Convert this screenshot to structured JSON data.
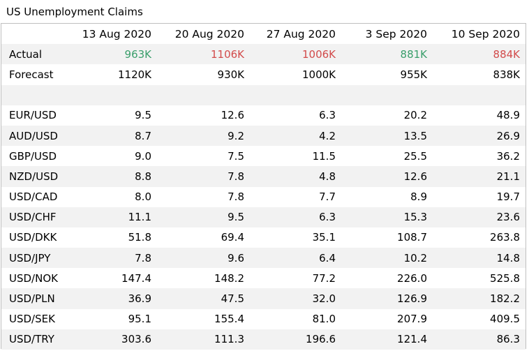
{
  "title": "US Unemployment Claims",
  "columns": [
    "13 Aug 2020",
    "20 Aug 2020",
    "27 Aug 2020",
    "3 Sep 2020",
    "10 Sep 2020"
  ],
  "actual": {
    "label": "Actual",
    "values": [
      "963K",
      "1106K",
      "1006K",
      "881K",
      "884K"
    ],
    "value_colors": [
      "green",
      "red",
      "red",
      "green",
      "red"
    ]
  },
  "forecast": {
    "label": "Forecast",
    "values": [
      "1120K",
      "930K",
      "1000K",
      "955K",
      "838K"
    ]
  },
  "pairs": [
    {
      "pair": "EUR/USD",
      "values": [
        "9.5",
        "12.6",
        "6.3",
        "20.2",
        "48.9"
      ]
    },
    {
      "pair": "AUD/USD",
      "values": [
        "8.7",
        "9.2",
        "4.2",
        "13.5",
        "26.9"
      ]
    },
    {
      "pair": "GBP/USD",
      "values": [
        "9.0",
        "7.5",
        "11.5",
        "25.5",
        "36.2"
      ]
    },
    {
      "pair": "NZD/USD",
      "values": [
        "8.8",
        "7.8",
        "4.8",
        "12.6",
        "21.1"
      ]
    },
    {
      "pair": "USD/CAD",
      "values": [
        "8.0",
        "7.8",
        "7.7",
        "8.9",
        "19.7"
      ]
    },
    {
      "pair": "USD/CHF",
      "values": [
        "11.1",
        "9.5",
        "6.3",
        "15.3",
        "23.6"
      ]
    },
    {
      "pair": "USD/DKK",
      "values": [
        "51.8",
        "69.4",
        "35.1",
        "108.7",
        "263.8"
      ]
    },
    {
      "pair": "USD/JPY",
      "values": [
        "7.8",
        "9.6",
        "6.4",
        "10.2",
        "14.8"
      ]
    },
    {
      "pair": "USD/NOK",
      "values": [
        "147.4",
        "148.2",
        "77.2",
        "226.0",
        "525.8"
      ]
    },
    {
      "pair": "USD/PLN",
      "values": [
        "36.9",
        "47.5",
        "32.0",
        "126.9",
        "182.2"
      ]
    },
    {
      "pair": "USD/SEK",
      "values": [
        "95.1",
        "155.4",
        "81.0",
        "207.9",
        "409.5"
      ]
    },
    {
      "pair": "USD/TRY",
      "values": [
        "303.6",
        "111.3",
        "196.6",
        "121.4",
        "86.3"
      ]
    }
  ],
  "colors": {
    "green": "#3a9e6b",
    "red": "#d24b4b",
    "stripe": "#f2f2f2",
    "border": "#bfbfbf"
  }
}
